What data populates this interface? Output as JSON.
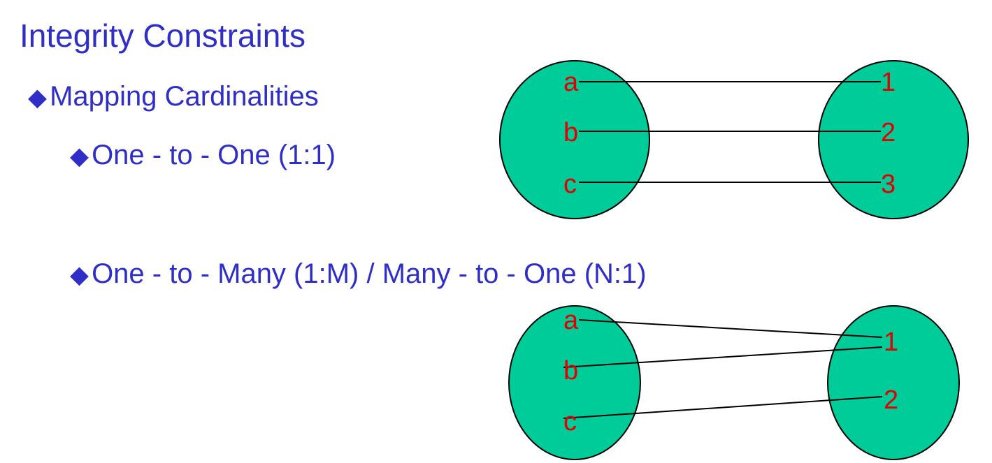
{
  "slide": {
    "title": "Integrity Constraints",
    "heading": "Mapping Cardinalities",
    "item_one_to_one": "One - to - One (1:1)",
    "item_one_to_many": "One - to - Many (1:M) / Many - to - One (N:1)",
    "bullet_glyph": "◆"
  },
  "diagram_one_to_one": {
    "left_labels": [
      "a",
      "b",
      "c"
    ],
    "right_labels": [
      "1",
      "2",
      "3"
    ],
    "mappings": [
      [
        "a",
        "1"
      ],
      [
        "b",
        "2"
      ],
      [
        "c",
        "3"
      ]
    ]
  },
  "diagram_one_to_many": {
    "left_labels": [
      "a",
      "b",
      "c"
    ],
    "right_labels": [
      "1",
      "2"
    ],
    "mappings": [
      [
        "a",
        "1"
      ],
      [
        "b",
        "1"
      ],
      [
        "c",
        "2"
      ]
    ]
  },
  "colors": {
    "text": "#2f2fc7",
    "set_fill": "#00cc99",
    "element_label": "#e00000",
    "line": "#000000"
  }
}
